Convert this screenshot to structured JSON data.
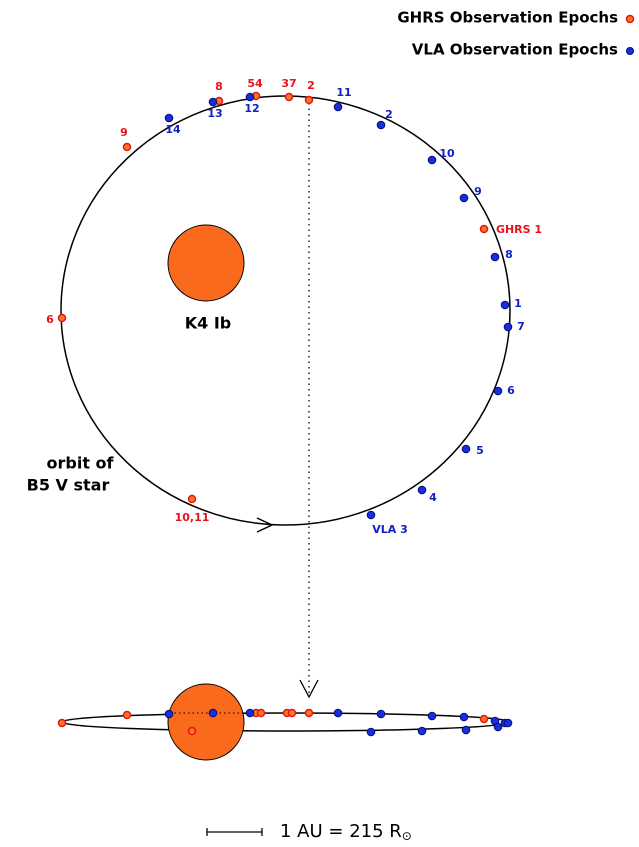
{
  "legend": {
    "ghrs": "GHRS Observation Epochs",
    "vla": "VLA Observation Epochs"
  },
  "star_label": "K4 Ib",
  "orbit_label": [
    "orbit of",
    "B5 V star"
  ],
  "ghrs_epochs": [
    "GHRS 1",
    "2",
    "37",
    "54",
    "8",
    "9",
    "6",
    "10,11"
  ],
  "vla_epochs": [
    "11",
    "2",
    "10",
    "9",
    "8",
    "1",
    "7",
    "6",
    "5",
    "4",
    "VLA 3",
    "12",
    "13",
    "14"
  ],
  "scale_label": "1 AU = 215 R",
  "scale_symbol": "⊙"
}
